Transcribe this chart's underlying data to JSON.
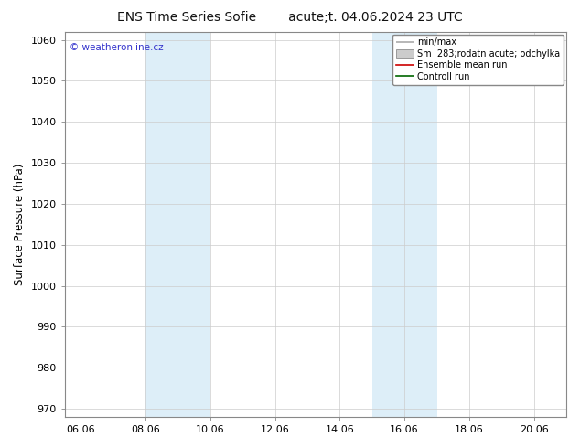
{
  "title_left": "ENS Time Series Sofie",
  "title_right": "acute;t. 04.06.2024 23 UTC",
  "ylabel": "Surface Pressure (hPa)",
  "ylim": [
    968,
    1062
  ],
  "yticks": [
    970,
    980,
    990,
    1000,
    1010,
    1020,
    1030,
    1040,
    1050,
    1060
  ],
  "xtick_labels": [
    "06.06",
    "08.06",
    "10.06",
    "12.06",
    "14.06",
    "16.06",
    "18.06",
    "20.06"
  ],
  "shade_color": "#ddeef8",
  "watermark": "© weatheronline.cz",
  "watermark_color": "#3333cc",
  "bg_color": "#ffffff",
  "grid_color": "#cccccc",
  "title_fontsize": 10,
  "tick_fontsize": 8,
  "ylabel_fontsize": 8.5,
  "legend_fontsize": 7,
  "spine_color": "#888888",
  "minmax_color": "#aaaaaa",
  "spread_facecolor": "#cccccc",
  "spread_edgecolor": "#999999",
  "ensemble_color": "#cc0000",
  "control_color": "#006600"
}
